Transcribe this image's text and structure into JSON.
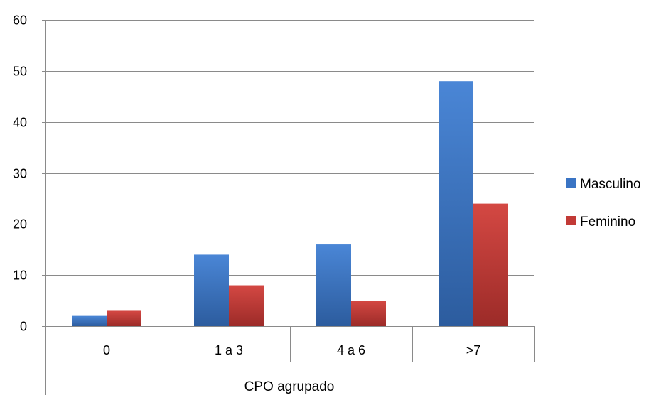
{
  "chart_data": {
    "type": "bar",
    "categories": [
      "0",
      "1 a 3",
      "4 a 6",
      ">7"
    ],
    "series": [
      {
        "name": "Masculino",
        "values": [
          2,
          14,
          16,
          48
        ],
        "color": "#3A74C4"
      },
      {
        "name": "Feminino",
        "values": [
          3,
          8,
          5,
          24
        ],
        "color": "#C23A36"
      }
    ],
    "xlabel": "CPO agrupado",
    "ylabel": "",
    "ylim": [
      0,
      60
    ],
    "yticks": [
      0,
      10,
      20,
      30,
      40,
      50,
      60
    ],
    "grid": true,
    "legend_position": "right"
  }
}
